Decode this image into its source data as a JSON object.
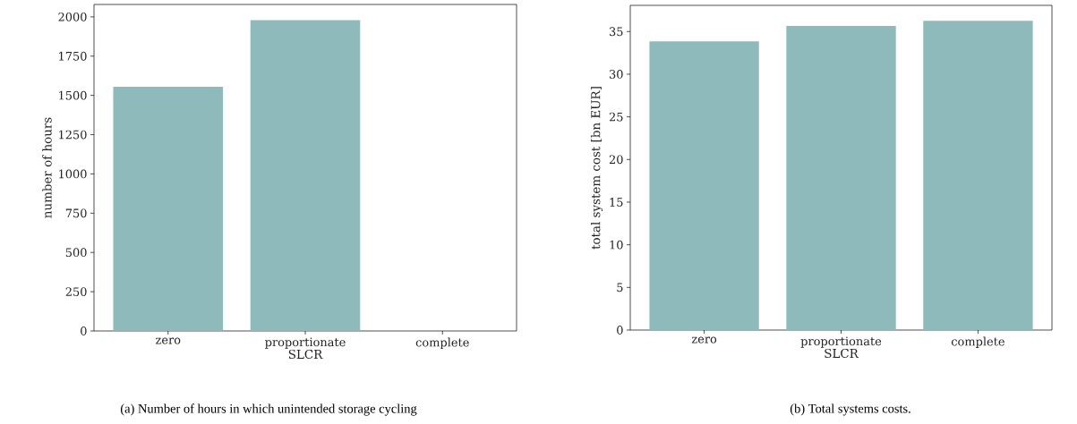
{
  "chart_data": [
    {
      "type": "bar",
      "xlabel": "SLCR",
      "ylabel": "number of hours",
      "categories": [
        "zero",
        "proportionate",
        "complete"
      ],
      "values": [
        1555,
        1980,
        0
      ],
      "color": "#8fbabb",
      "ylim": [
        0,
        2079
      ],
      "yticks": [
        0,
        250,
        500,
        750,
        1000,
        1250,
        1500,
        1750,
        2000
      ],
      "grid": false,
      "annotations": [
        "(a) Number of hours in which unintended storage cycling"
      ]
    },
    {
      "type": "bar",
      "xlabel": "SLCR",
      "ylabel": "total system cost [bn EUR]",
      "categories": [
        "zero",
        "proportionate",
        "complete"
      ],
      "values": [
        33.86,
        35.66,
        36.26
      ],
      "color": "#8fbabb",
      "ylim": [
        0,
        38.07
      ],
      "yticks": [
        0,
        5,
        10,
        15,
        20,
        25,
        30,
        35
      ],
      "grid": false,
      "annotations": [
        "(b) Total systems costs."
      ]
    }
  ]
}
